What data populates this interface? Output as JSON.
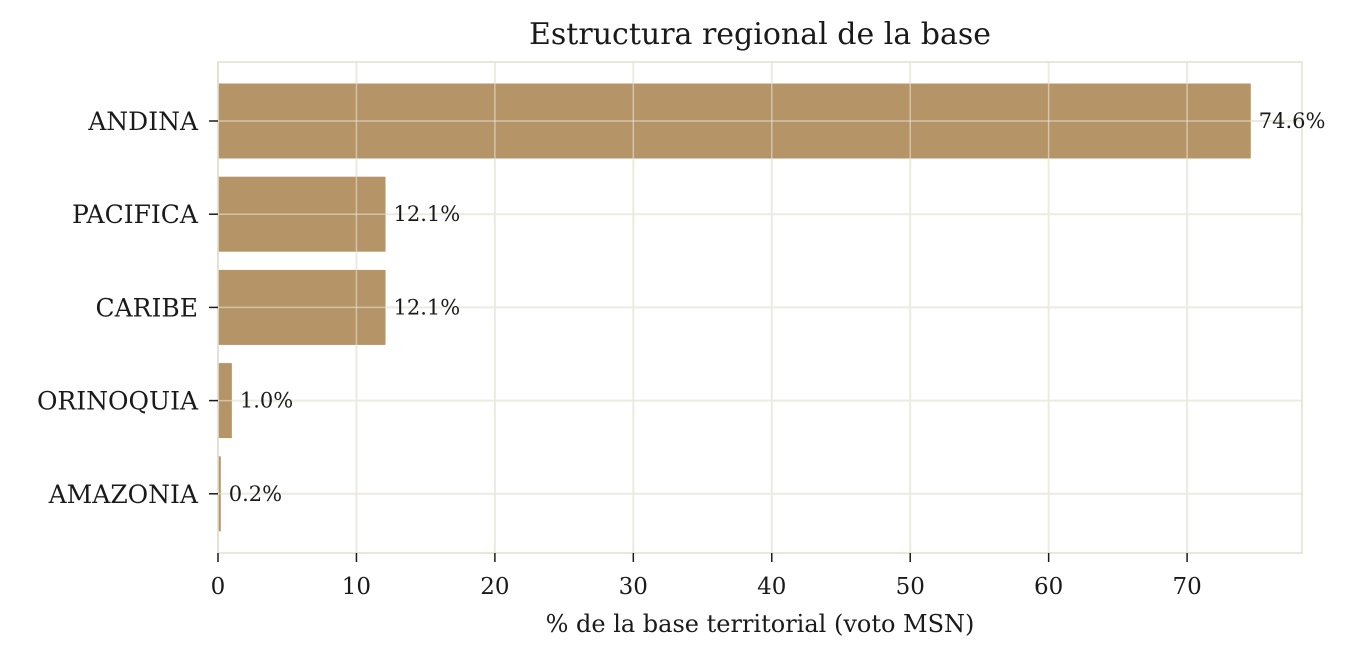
{
  "chart_data": {
    "type": "bar",
    "orientation": "horizontal",
    "title": "Estructura regional de la base",
    "xlabel": "% de la base territorial (voto MSN)",
    "ylabel": "",
    "categories": [
      "ANDINA",
      "PACIFICA",
      "CARIBE",
      "ORINOQUIA",
      "AMAZONIA"
    ],
    "values": [
      74.6,
      12.1,
      12.1,
      1.0,
      0.2
    ],
    "value_labels": [
      "74.6%",
      "12.1%",
      "12.1%",
      "1.0%",
      "0.2%"
    ],
    "xticks": [
      "0",
      "10",
      "20",
      "30",
      "40",
      "50",
      "60",
      "70"
    ],
    "xlim": [
      0,
      78.3
    ],
    "grid": true,
    "legend": "none",
    "colors": {
      "bar": "#b59467",
      "grid": "#ecebe2",
      "frame": "#e2dfcf",
      "text": "#1a1a1a"
    }
  }
}
